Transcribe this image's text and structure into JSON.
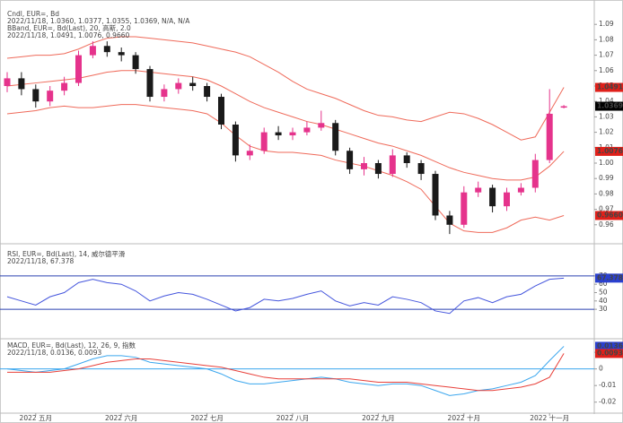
{
  "chart_data": [
    {
      "type": "candlestick",
      "legend": [
        "Cndl, EUR=, Bd",
        "2022/11/18, 1.0360, 1.0377, 1.0355, 1.0369, N/A, N/A",
        "BBand, EUR=, Bd(Last), 20, 高斯, 2.0",
        "2022/11/18, 1.0491, 1.0076, 0.9660"
      ],
      "legend_colors": [
        "#222222",
        "#222222",
        "#e0403a",
        "#e0403a"
      ],
      "categories": [
        null,
        null,
        "2022 五月",
        null,
        null,
        null,
        null,
        null,
        "2022 六月",
        null,
        null,
        null,
        null,
        null,
        "2022 七月",
        null,
        null,
        null,
        null,
        null,
        "2022 八月",
        null,
        null,
        null,
        null,
        null,
        "2022 九月",
        null,
        null,
        null,
        null,
        null,
        "2022 十月",
        null,
        null,
        null,
        null,
        null,
        "2022 十一月",
        null
      ],
      "open": [
        1.05,
        1.055,
        1.048,
        1.04,
        1.047,
        1.052,
        1.07,
        1.076,
        1.072,
        1.07,
        1.061,
        1.043,
        1.048,
        1.052,
        1.05,
        1.043,
        1.025,
        1.005,
        1.008,
        1.02,
        1.018,
        1.02,
        1.023,
        1.026,
        1.008,
        0.996,
        1.0,
        0.993,
        1.005,
        1.0,
        0.993,
        0.966,
        0.96,
        0.981,
        0.984,
        0.972,
        0.981,
        0.984,
        1.002,
        1.036
      ],
      "high": [
        1.059,
        1.059,
        1.051,
        1.05,
        1.056,
        1.073,
        1.079,
        1.079,
        1.075,
        1.072,
        1.063,
        1.051,
        1.055,
        1.056,
        1.052,
        1.045,
        1.027,
        1.012,
        1.023,
        1.024,
        1.023,
        1.027,
        1.034,
        1.028,
        1.01,
        1.004,
        1.002,
        1.009,
        1.007,
        1.002,
        0.995,
        0.969,
        0.985,
        0.988,
        0.986,
        0.984,
        0.987,
        1.006,
        1.048,
        1.0377
      ],
      "low": [
        1.046,
        1.044,
        1.036,
        1.037,
        1.044,
        1.05,
        1.068,
        1.069,
        1.066,
        1.058,
        1.04,
        1.04,
        1.045,
        1.047,
        1.04,
        1.022,
        1.001,
        1.002,
        1.006,
        1.015,
        1.015,
        1.018,
        1.021,
        1.005,
        0.993,
        0.992,
        0.99,
        0.991,
        0.997,
        0.989,
        0.963,
        0.954,
        0.958,
        0.978,
        0.968,
        0.969,
        0.979,
        0.981,
        1.0,
        1.0355
      ],
      "close": [
        1.055,
        1.048,
        1.04,
        1.047,
        1.052,
        1.07,
        1.076,
        1.072,
        1.07,
        1.061,
        1.043,
        1.048,
        1.052,
        1.05,
        1.043,
        1.025,
        1.005,
        1.008,
        1.02,
        1.018,
        1.02,
        1.023,
        1.026,
        1.008,
        0.996,
        1.0,
        0.993,
        1.005,
        1.0,
        0.993,
        0.966,
        0.96,
        0.981,
        0.984,
        0.972,
        0.981,
        0.984,
        1.002,
        1.032,
        1.0369
      ],
      "up_color": "#e5338c",
      "down_color": "#1a1a1a",
      "bands": {
        "color": "#ef6a5a",
        "upper": [
          1.068,
          1.069,
          1.07,
          1.07,
          1.071,
          1.074,
          1.078,
          1.081,
          1.082,
          1.082,
          1.081,
          1.08,
          1.079,
          1.078,
          1.076,
          1.074,
          1.072,
          1.069,
          1.064,
          1.059,
          1.053,
          1.048,
          1.045,
          1.042,
          1.038,
          1.034,
          1.031,
          1.03,
          1.028,
          1.027,
          1.03,
          1.033,
          1.032,
          1.029,
          1.025,
          1.02,
          1.015,
          1.017,
          1.033,
          1.0491
        ],
        "middle": [
          1.05,
          1.051,
          1.052,
          1.053,
          1.054,
          1.055,
          1.057,
          1.059,
          1.06,
          1.06,
          1.059,
          1.058,
          1.057,
          1.056,
          1.054,
          1.05,
          1.045,
          1.04,
          1.036,
          1.033,
          1.03,
          1.027,
          1.025,
          1.022,
          1.019,
          1.016,
          1.013,
          1.011,
          1.008,
          1.005,
          1.001,
          0.997,
          0.994,
          0.992,
          0.99,
          0.989,
          0.989,
          0.991,
          0.998,
          1.0076
        ],
        "lower": [
          1.032,
          1.033,
          1.034,
          1.036,
          1.037,
          1.036,
          1.036,
          1.037,
          1.038,
          1.038,
          1.037,
          1.036,
          1.035,
          1.034,
          1.032,
          1.026,
          1.018,
          1.011,
          1.008,
          1.007,
          1.007,
          1.006,
          1.005,
          1.002,
          1.0,
          0.998,
          0.995,
          0.992,
          0.988,
          0.983,
          0.972,
          0.961,
          0.956,
          0.955,
          0.955,
          0.958,
          0.963,
          0.965,
          0.963,
          0.966
        ]
      },
      "ylim": [
        0.95,
        1.1
      ],
      "yticks": [
        {
          "value": 0.96,
          "label": "0.96"
        },
        {
          "value": 0.97,
          "label": "0.97"
        },
        {
          "value": 0.98,
          "label": "0.98"
        },
        {
          "value": 0.99,
          "label": "0.99"
        },
        {
          "value": 1.0,
          "label": "1.00"
        },
        {
          "value": 1.01,
          "label": "1.01"
        },
        {
          "value": 1.02,
          "label": "1.02"
        },
        {
          "value": 1.03,
          "label": "1.03"
        },
        {
          "value": 1.04,
          "label": "1.04"
        },
        {
          "value": 1.05,
          "label": "1.05"
        },
        {
          "value": 1.06,
          "label": "1.06"
        },
        {
          "value": 1.07,
          "label": "1.07"
        },
        {
          "value": 1.08,
          "label": "1.08"
        },
        {
          "value": 1.09,
          "label": "1.09"
        }
      ],
      "markers": [
        {
          "value": 1.0491,
          "label": "1.0491",
          "color": "#e0201a"
        },
        {
          "value": 1.0369,
          "label": "1.0369",
          "color": "#000000"
        },
        {
          "value": 1.0076,
          "label": "1.0076",
          "color": "#e0201a"
        },
        {
          "value": 0.966,
          "label": "0.9660",
          "color": "#e0201a"
        }
      ]
    },
    {
      "type": "line",
      "legend": [
        "RSI, EUR=, Bd(Last), 14, 威尔德平滑",
        "2022/11/18, 67.378"
      ],
      "legend_colors": [
        "#3344cc",
        "#3344cc"
      ],
      "series": [
        {
          "color": "#4455dd",
          "values": [
            45,
            40,
            35,
            45,
            50,
            62,
            66,
            62,
            60,
            52,
            40,
            46,
            50,
            48,
            42,
            35,
            28,
            32,
            42,
            40,
            43,
            48,
            52,
            40,
            34,
            38,
            35,
            45,
            42,
            38,
            28,
            25,
            40,
            44,
            38,
            45,
            48,
            58,
            66,
            67.378
          ]
        }
      ],
      "ylim": [
        0,
        100
      ],
      "yticks": [
        30,
        40,
        50,
        60,
        70
      ],
      "levels": [
        30,
        70
      ],
      "level_color": "#2a40b0",
      "markers": [
        {
          "value": 67.378,
          "label": "67.378",
          "color": "#2a40d0"
        }
      ]
    },
    {
      "type": "line",
      "legend": [
        "MACD, EUR=, Bd(Last), 12, 26, 9, 指数",
        "2022/11/18, 0.0136, 0.0093"
      ],
      "legend_colors": [
        "#2f7fd0",
        "#2f7fd0"
      ],
      "series": [
        {
          "color": "#3aa6ee",
          "values": [
            0.0,
            -0.001,
            -0.002,
            -0.001,
            0.0,
            0.003,
            0.006,
            0.008,
            0.008,
            0.007,
            0.004,
            0.003,
            0.002,
            0.001,
            0.0,
            -0.003,
            -0.007,
            -0.009,
            -0.009,
            -0.008,
            -0.007,
            -0.006,
            -0.005,
            -0.006,
            -0.008,
            -0.009,
            -0.01,
            -0.009,
            -0.009,
            -0.01,
            -0.013,
            -0.016,
            -0.015,
            -0.013,
            -0.012,
            -0.01,
            -0.008,
            -0.004,
            0.005,
            0.0136
          ]
        },
        {
          "color": "#e8403a",
          "values": [
            -0.002,
            -0.002,
            -0.002,
            -0.002,
            -0.001,
            0.0,
            0.002,
            0.004,
            0.005,
            0.006,
            0.006,
            0.005,
            0.004,
            0.003,
            0.002,
            0.001,
            -0.001,
            -0.003,
            -0.005,
            -0.006,
            -0.006,
            -0.006,
            -0.006,
            -0.006,
            -0.006,
            -0.007,
            -0.008,
            -0.008,
            -0.008,
            -0.009,
            -0.01,
            -0.011,
            -0.012,
            -0.013,
            -0.013,
            -0.012,
            -0.011,
            -0.009,
            -0.005,
            0.0093
          ]
        }
      ],
      "ylim": [
        -0.025,
        0.016
      ],
      "yticks": [
        -0.02,
        -0.01,
        0,
        0.01
      ],
      "levels": [
        0
      ],
      "level_color": "#3aa6ee",
      "markers": [
        {
          "value": 0.0136,
          "label": "0.0136",
          "color": "#2a40d0"
        },
        {
          "value": 0.0093,
          "label": "0.0093",
          "color": "#e0201a"
        }
      ]
    }
  ]
}
